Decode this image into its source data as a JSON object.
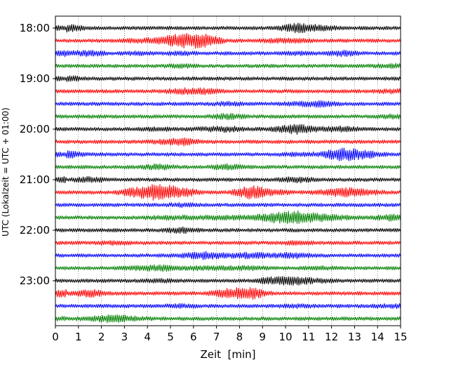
{
  "chart_data": {
    "type": "line",
    "subtype": "helicorder",
    "xlabel": "Zeit  [min]",
    "ylabel": "UTC (Lokalzeit = UTC + 01:00)",
    "xlim": [
      0,
      15
    ],
    "x_ticks": [
      0,
      1,
      2,
      3,
      4,
      5,
      6,
      7,
      8,
      9,
      10,
      11,
      12,
      13,
      14,
      15
    ],
    "x_tick_labels": [
      "0",
      "1",
      "2",
      "3",
      "4",
      "5",
      "6",
      "7",
      "8",
      "9",
      "10",
      "11",
      "12",
      "13",
      "14",
      "15"
    ],
    "y_tick_labels": [
      "18:00",
      "19:00",
      "20:00",
      "21:00",
      "22:00",
      "23:00"
    ],
    "y_tick_rows": [
      0,
      4,
      8,
      12,
      16,
      20
    ],
    "grid": "vertical dotted at each minute",
    "colors": [
      "#000000",
      "#ff0000",
      "#0000ff",
      "#008000"
    ],
    "series": [
      {
        "values": [
          0.5,
          0.2,
          0.2,
          0.2,
          0.2,
          0.2,
          0.2,
          0.2,
          0.2,
          0.2,
          0.6,
          0.4,
          0.2,
          0.2,
          0.2
        ]
      },
      {
        "values": [
          0.2,
          0.2,
          0.2,
          0.3,
          0.4,
          0.9,
          0.8,
          0.2,
          0.2,
          0.3,
          0.3,
          0.2,
          0.2,
          0.2,
          0.2
        ]
      },
      {
        "values": [
          0.3,
          0.4,
          0.2,
          0.3,
          0.2,
          0.3,
          0.2,
          0.2,
          0.2,
          0.2,
          0.3,
          0.2,
          0.4,
          0.2,
          0.2
        ]
      },
      {
        "values": [
          0.2,
          0.2,
          0.2,
          0.2,
          0.2,
          0.3,
          0.2,
          0.2,
          0.2,
          0.2,
          0.2,
          0.2,
          0.2,
          0.2,
          0.3
        ]
      },
      {
        "values": [
          0.4,
          0.2,
          0.2,
          0.2,
          0.2,
          0.2,
          0.2,
          0.2,
          0.2,
          0.2,
          0.2,
          0.2,
          0.2,
          0.2,
          0.2
        ]
      },
      {
        "values": [
          0.2,
          0.2,
          0.2,
          0.2,
          0.2,
          0.4,
          0.4,
          0.2,
          0.2,
          0.2,
          0.2,
          0.2,
          0.2,
          0.2,
          0.3
        ]
      },
      {
        "values": [
          0.2,
          0.2,
          0.2,
          0.2,
          0.2,
          0.2,
          0.2,
          0.3,
          0.2,
          0.2,
          0.3,
          0.4,
          0.2,
          0.2,
          0.2
        ]
      },
      {
        "values": [
          0.2,
          0.2,
          0.2,
          0.2,
          0.2,
          0.2,
          0.2,
          0.4,
          0.2,
          0.2,
          0.2,
          0.2,
          0.2,
          0.2,
          0.3
        ]
      },
      {
        "values": [
          0.2,
          0.2,
          0.2,
          0.2,
          0.3,
          0.2,
          0.3,
          0.4,
          0.2,
          0.3,
          0.6,
          0.3,
          0.4,
          0.2,
          0.2
        ]
      },
      {
        "values": [
          0.2,
          0.2,
          0.2,
          0.2,
          0.3,
          0.5,
          0.2,
          0.2,
          0.2,
          0.2,
          0.2,
          0.2,
          0.2,
          0.2,
          0.2
        ]
      },
      {
        "values": [
          0.5,
          0.2,
          0.2,
          0.2,
          0.2,
          0.2,
          0.2,
          0.2,
          0.2,
          0.2,
          0.3,
          0.3,
          0.8,
          0.5,
          0.2
        ]
      },
      {
        "values": [
          0.2,
          0.2,
          0.2,
          0.2,
          0.4,
          0.2,
          0.2,
          0.4,
          0.2,
          0.2,
          0.2,
          0.2,
          0.2,
          0.2,
          0.2
        ]
      },
      {
        "values": [
          0.2,
          0.4,
          0.2,
          0.2,
          0.2,
          0.2,
          0.2,
          0.2,
          0.2,
          0.2,
          0.4,
          0.2,
          0.2,
          0.2,
          0.2
        ]
      },
      {
        "values": [
          0.2,
          0.2,
          0.2,
          0.6,
          1.0,
          0.6,
          0.2,
          0.2,
          0.8,
          0.4,
          0.2,
          0.3,
          0.6,
          0.4,
          0.2
        ]
      },
      {
        "values": [
          0.2,
          0.2,
          0.2,
          0.2,
          0.2,
          0.3,
          0.2,
          0.2,
          0.2,
          0.2,
          0.2,
          0.2,
          0.2,
          0.2,
          0.2
        ]
      },
      {
        "values": [
          0.2,
          0.2,
          0.2,
          0.2,
          0.3,
          0.3,
          0.3,
          0.3,
          0.3,
          0.6,
          0.8,
          0.5,
          0.3,
          0.2,
          0.4
        ]
      },
      {
        "values": [
          0.2,
          0.2,
          0.2,
          0.2,
          0.2,
          0.4,
          0.2,
          0.2,
          0.2,
          0.2,
          0.2,
          0.2,
          0.2,
          0.2,
          0.2
        ]
      },
      {
        "values": [
          0.2,
          0.2,
          0.3,
          0.2,
          0.2,
          0.2,
          0.2,
          0.2,
          0.2,
          0.2,
          0.3,
          0.2,
          0.2,
          0.2,
          0.2
        ]
      },
      {
        "values": [
          0.2,
          0.2,
          0.2,
          0.2,
          0.2,
          0.3,
          0.5,
          0.3,
          0.4,
          0.3,
          0.4,
          0.2,
          0.2,
          0.2,
          0.2
        ]
      },
      {
        "values": [
          0.2,
          0.2,
          0.2,
          0.3,
          0.4,
          0.3,
          0.3,
          0.3,
          0.3,
          0.2,
          0.2,
          0.3,
          0.2,
          0.2,
          0.2
        ]
      },
      {
        "values": [
          0.2,
          0.2,
          0.2,
          0.2,
          0.3,
          0.2,
          0.2,
          0.2,
          0.2,
          0.5,
          0.5,
          0.3,
          0.2,
          0.2,
          0.2
        ]
      },
      {
        "values": [
          0.2,
          0.5,
          0.2,
          0.2,
          0.2,
          0.2,
          0.2,
          0.6,
          0.7,
          0.2,
          0.2,
          0.2,
          0.2,
          0.2,
          0.2
        ]
      },
      {
        "values": [
          0.2,
          0.2,
          0.2,
          0.2,
          0.2,
          0.3,
          0.2,
          0.2,
          0.2,
          0.2,
          0.3,
          0.2,
          0.2,
          0.2,
          0.3
        ]
      },
      {
        "values": [
          0.2,
          0.3,
          0.5,
          0.3,
          0.2,
          0.2,
          0.2,
          0.2,
          0.2,
          0.2,
          0.2,
          0.2,
          0.2,
          0.2,
          0.2
        ]
      }
    ]
  }
}
